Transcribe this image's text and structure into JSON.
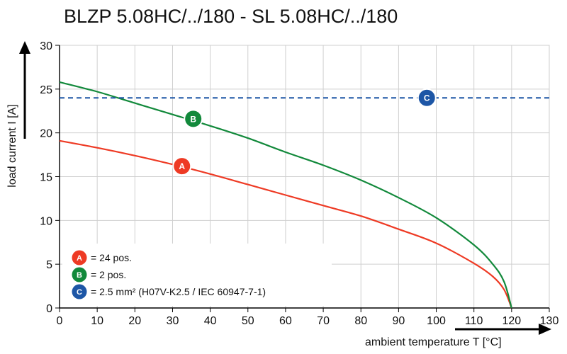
{
  "chart_data": {
    "type": "line",
    "title": "BLZP 5.08HC/../180 - SL 5.08HC/../180",
    "xlabel": "ambient temperature T [°C]",
    "ylabel": "load current I [A]",
    "xlim": [
      0,
      130
    ],
    "ylim": [
      0,
      30
    ],
    "xticks": [
      0,
      10,
      20,
      30,
      40,
      50,
      60,
      70,
      80,
      90,
      100,
      110,
      120,
      130
    ],
    "yticks": [
      0,
      5,
      10,
      15,
      20,
      25,
      30
    ],
    "grid": true,
    "series": [
      {
        "id": "A",
        "name": "= 24 pos.",
        "color": "#ee3a24",
        "style": "solid",
        "marker_at": [
          32.5,
          16.2
        ],
        "x": [
          0,
          10,
          20,
          30,
          40,
          50,
          60,
          70,
          80,
          90,
          100,
          110,
          115,
          118,
          120
        ],
        "y": [
          19.1,
          18.3,
          17.4,
          16.4,
          15.3,
          14.1,
          12.9,
          11.7,
          10.5,
          9.0,
          7.4,
          5.1,
          3.6,
          2.1,
          0
        ]
      },
      {
        "id": "B",
        "name": "= 2 pos.",
        "color": "#12893b",
        "style": "solid",
        "marker_at": [
          35.5,
          21.6
        ],
        "x": [
          0,
          10,
          20,
          30,
          40,
          50,
          60,
          70,
          80,
          90,
          100,
          110,
          115,
          118,
          120
        ],
        "y": [
          25.8,
          24.7,
          23.4,
          22.1,
          20.8,
          19.4,
          17.8,
          16.3,
          14.6,
          12.6,
          10.3,
          7.2,
          5.0,
          3.0,
          0
        ]
      },
      {
        "id": "C",
        "name": "= 2.5 mm² (H07V-K2.5 / IEC 60947-7-1)",
        "color": "#1d56a6",
        "style": "dashed",
        "marker_at": [
          97.5,
          24.0
        ],
        "x": [
          0,
          130
        ],
        "y": [
          24.0,
          24.0
        ]
      }
    ],
    "legend_position": "bottom-left"
  }
}
